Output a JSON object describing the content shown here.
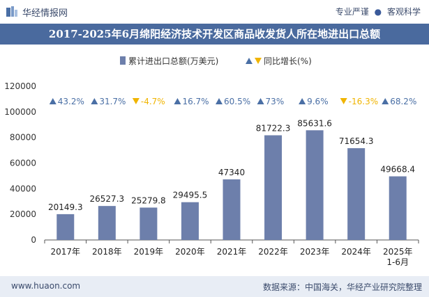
{
  "header": {
    "brand": "华经情报网",
    "tag1": "专业严谨",
    "tag2": "客观科学",
    "separator": "●"
  },
  "title": "2017-2025年6月绵阳经济技术开发区商品收发货人所在地进出口总额",
  "footer": {
    "left": "www.huaon.com",
    "right": "数据来源：中国海关，华经产业研究院整理"
  },
  "colors": {
    "bar": "#6d7fab",
    "up": "#4a6fa5",
    "down": "#f0b400",
    "title_bg": "#4a6a9e",
    "footer_bg": "#e8edf5"
  },
  "chart_data": {
    "type": "bar",
    "categories": [
      "2017年",
      "2018年",
      "2019年",
      "2020年",
      "2021年",
      "2022年",
      "2023年",
      "2024年",
      "2025年\n1-6月"
    ],
    "series": [
      {
        "name": "累计进出口总额(万美元)",
        "values": [
          20149.3,
          26527.3,
          25279.8,
          29495.5,
          47340,
          81722.3,
          85631.6,
          71654.3,
          49668.4
        ],
        "labels": [
          "20149.3",
          "26527.3",
          "25279.8",
          "29495.5",
          "47340",
          "81722.3",
          "85631.6",
          "71654.3",
          "49668.4"
        ]
      },
      {
        "name": "同比增长(%)",
        "values": [
          43.2,
          31.7,
          -4.7,
          16.7,
          60.5,
          73,
          9.6,
          -16.3,
          68.2
        ],
        "labels": [
          "43.2%",
          "31.7%",
          "-4.7%",
          "16.7%",
          "60.5%",
          "73%",
          "9.6%",
          "-16.3%",
          "68.2%"
        ]
      }
    ],
    "yticks": [
      "0",
      "20000",
      "40000",
      "60000",
      "80000",
      "100000",
      "120000"
    ],
    "ylim": [
      0,
      120000
    ],
    "legend_position": "top"
  }
}
